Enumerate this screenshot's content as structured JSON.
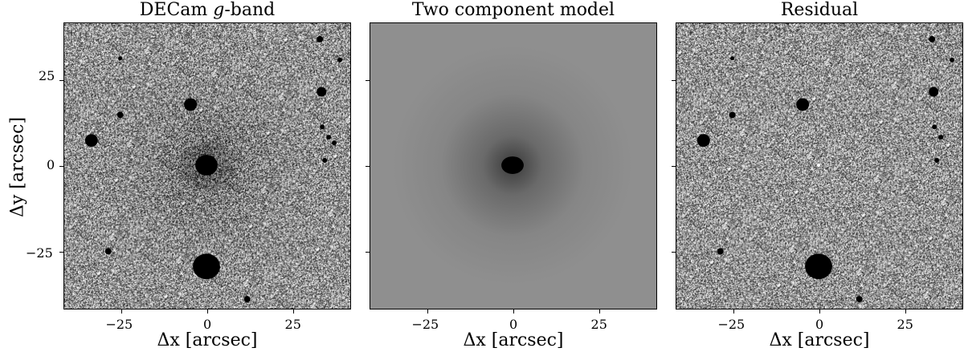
{
  "panels": [
    {
      "title_prefix": "DECam ",
      "title_italic": "g",
      "title_suffix": "-band",
      "xlabel": "Δx [arcsec]",
      "kind": "observed"
    },
    {
      "title_prefix": "Two component model",
      "title_italic": "",
      "title_suffix": "",
      "xlabel": "Δx [arcsec]",
      "kind": "model"
    },
    {
      "title_prefix": "Residual",
      "title_italic": "",
      "title_suffix": "",
      "xlabel": "Δx [arcsec]",
      "kind": "residual"
    }
  ],
  "ylabel": "Δy [arcsec]",
  "x_ticks": [
    "−25",
    "0",
    "25"
  ],
  "y_ticks": [
    "25",
    "0",
    "−25"
  ],
  "axis_range": [
    -42,
    42
  ],
  "colors": {
    "model_background": "#8f8f8f",
    "source": "#000000"
  }
}
